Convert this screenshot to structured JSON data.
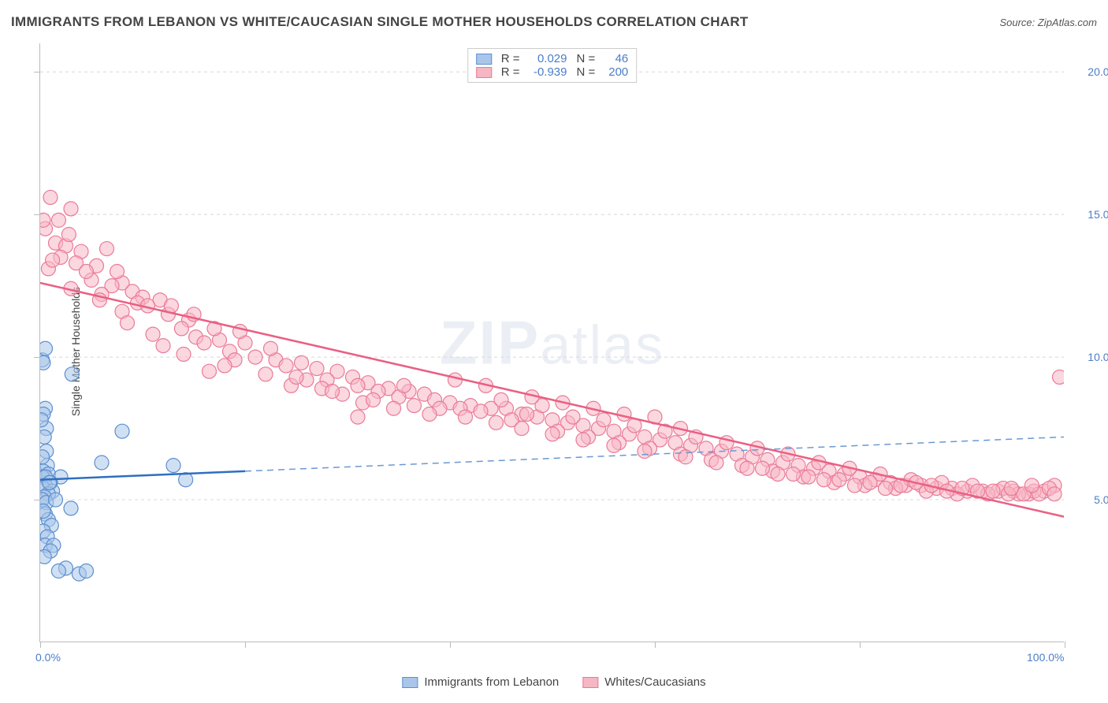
{
  "header": {
    "title": "IMMIGRANTS FROM LEBANON VS WHITE/CAUCASIAN SINGLE MOTHER HOUSEHOLDS CORRELATION CHART",
    "source_prefix": "Source: ",
    "source_name": "ZipAtlas.com"
  },
  "watermark": {
    "zip": "ZIP",
    "atlas": "atlas"
  },
  "chart": {
    "type": "scatter",
    "y_axis_label": "Single Mother Households",
    "xlim": [
      0,
      100
    ],
    "ylim": [
      0,
      21
    ],
    "x_ticks": [
      0,
      20,
      40,
      60,
      80,
      100
    ],
    "x_tick_labels": {
      "0": "0.0%",
      "100": "100.0%"
    },
    "y_ticks": [
      5,
      10,
      15,
      20
    ],
    "y_tick_labels": {
      "5": "5.0%",
      "10": "10.0%",
      "15": "15.0%",
      "20": "20.0%"
    },
    "grid_color": "#d8d8d8",
    "axis_color": "#bbbbbb",
    "background_color": "#ffffff",
    "tick_label_color": "#4a7ec9",
    "series": {
      "blue": {
        "label": "Immigrants from Lebanon",
        "fill": "#a9c6ea",
        "fill_opacity": 0.55,
        "stroke": "#5b8fd0",
        "line_color": "#2e6fc0",
        "dash_color": "#6a99d2",
        "R": "0.029",
        "N": "46",
        "marker_r": 9,
        "trend": {
          "x1": 0,
          "y1": 5.7,
          "x2": 100,
          "y2": 7.2,
          "solid_until_x": 20
        },
        "points": [
          {
            "x": 0.2,
            "y": 9.9
          },
          {
            "x": 0.3,
            "y": 9.8
          },
          {
            "x": 3.1,
            "y": 9.4
          },
          {
            "x": 0.5,
            "y": 8.2
          },
          {
            "x": 0.3,
            "y": 8.0
          },
          {
            "x": 0.6,
            "y": 7.5
          },
          {
            "x": 8.0,
            "y": 7.4
          },
          {
            "x": 0.4,
            "y": 7.2
          },
          {
            "x": 0.6,
            "y": 6.7
          },
          {
            "x": 6.0,
            "y": 6.3
          },
          {
            "x": 13.0,
            "y": 6.2
          },
          {
            "x": 0.7,
            "y": 6.2
          },
          {
            "x": 0.3,
            "y": 6.0
          },
          {
            "x": 0.8,
            "y": 5.9
          },
          {
            "x": 0.2,
            "y": 5.8
          },
          {
            "x": 0.5,
            "y": 5.8
          },
          {
            "x": 2.0,
            "y": 5.8
          },
          {
            "x": 14.2,
            "y": 5.7
          },
          {
            "x": 1.0,
            "y": 5.6
          },
          {
            "x": 0.5,
            "y": 5.5
          },
          {
            "x": 0.3,
            "y": 5.4
          },
          {
            "x": 1.2,
            "y": 5.3
          },
          {
            "x": 0.8,
            "y": 5.2
          },
          {
            "x": 0.4,
            "y": 5.1
          },
          {
            "x": 0.2,
            "y": 5.0
          },
          {
            "x": 0.6,
            "y": 4.9
          },
          {
            "x": 3.0,
            "y": 4.7
          },
          {
            "x": 0.5,
            "y": 4.5
          },
          {
            "x": 0.8,
            "y": 4.3
          },
          {
            "x": 1.1,
            "y": 4.1
          },
          {
            "x": 0.3,
            "y": 3.9
          },
          {
            "x": 0.7,
            "y": 3.7
          },
          {
            "x": 0.5,
            "y": 3.4
          },
          {
            "x": 1.3,
            "y": 3.4
          },
          {
            "x": 1.0,
            "y": 3.2
          },
          {
            "x": 0.4,
            "y": 3.0
          },
          {
            "x": 2.5,
            "y": 2.6
          },
          {
            "x": 1.8,
            "y": 2.5
          },
          {
            "x": 3.8,
            "y": 2.4
          },
          {
            "x": 4.5,
            "y": 2.5
          },
          {
            "x": 0.5,
            "y": 10.3
          },
          {
            "x": 0.1,
            "y": 7.8
          },
          {
            "x": 0.2,
            "y": 6.5
          },
          {
            "x": 1.5,
            "y": 5.0
          },
          {
            "x": 0.3,
            "y": 4.6
          },
          {
            "x": 0.9,
            "y": 5.6
          }
        ]
      },
      "pink": {
        "label": "Whites/Caucasians",
        "fill": "#f7b6c4",
        "fill_opacity": 0.55,
        "stroke": "#ea7a97",
        "line_color": "#e96083",
        "R": "-0.939",
        "N": "200",
        "marker_r": 9,
        "trend": {
          "x1": 0,
          "y1": 12.6,
          "x2": 100,
          "y2": 4.4,
          "solid_until_x": 100
        },
        "points": [
          {
            "x": 1.0,
            "y": 15.6
          },
          {
            "x": 3.0,
            "y": 15.2
          },
          {
            "x": 0.5,
            "y": 14.5
          },
          {
            "x": 1.5,
            "y": 14.0
          },
          {
            "x": 2.5,
            "y": 13.9
          },
          {
            "x": 4.0,
            "y": 13.7
          },
          {
            "x": 2.0,
            "y": 13.5
          },
          {
            "x": 3.5,
            "y": 13.3
          },
          {
            "x": 5.5,
            "y": 13.2
          },
          {
            "x": 0.8,
            "y": 13.1
          },
          {
            "x": 5.0,
            "y": 12.7
          },
          {
            "x": 8.0,
            "y": 12.6
          },
          {
            "x": 7.0,
            "y": 12.5
          },
          {
            "x": 3.0,
            "y": 12.4
          },
          {
            "x": 9.0,
            "y": 12.3
          },
          {
            "x": 6.0,
            "y": 12.2
          },
          {
            "x": 10.0,
            "y": 12.1
          },
          {
            "x": 11.7,
            "y": 12.0
          },
          {
            "x": 9.5,
            "y": 11.9
          },
          {
            "x": 8.0,
            "y": 11.6
          },
          {
            "x": 12.5,
            "y": 11.5
          },
          {
            "x": 14.5,
            "y": 11.3
          },
          {
            "x": 13.8,
            "y": 11.0
          },
          {
            "x": 11.0,
            "y": 10.8
          },
          {
            "x": 15.2,
            "y": 10.7
          },
          {
            "x": 17.5,
            "y": 10.6
          },
          {
            "x": 20.0,
            "y": 10.5
          },
          {
            "x": 16.0,
            "y": 10.5
          },
          {
            "x": 12.0,
            "y": 10.4
          },
          {
            "x": 18.5,
            "y": 10.2
          },
          {
            "x": 14.0,
            "y": 10.1
          },
          {
            "x": 21.0,
            "y": 10.0
          },
          {
            "x": 23.0,
            "y": 9.9
          },
          {
            "x": 19.0,
            "y": 9.9
          },
          {
            "x": 25.5,
            "y": 9.8
          },
          {
            "x": 24.0,
            "y": 9.7
          },
          {
            "x": 18.0,
            "y": 9.7
          },
          {
            "x": 27.0,
            "y": 9.6
          },
          {
            "x": 16.5,
            "y": 9.5
          },
          {
            "x": 29.0,
            "y": 9.5
          },
          {
            "x": 22.0,
            "y": 9.4
          },
          {
            "x": 30.5,
            "y": 9.3
          },
          {
            "x": 26.0,
            "y": 9.2
          },
          {
            "x": 28.0,
            "y": 9.2
          },
          {
            "x": 32.0,
            "y": 9.1
          },
          {
            "x": 31.0,
            "y": 9.0
          },
          {
            "x": 24.5,
            "y": 9.0
          },
          {
            "x": 34.0,
            "y": 8.9
          },
          {
            "x": 33.0,
            "y": 8.8
          },
          {
            "x": 36.0,
            "y": 8.8
          },
          {
            "x": 29.5,
            "y": 8.7
          },
          {
            "x": 37.5,
            "y": 8.7
          },
          {
            "x": 35.0,
            "y": 8.6
          },
          {
            "x": 38.5,
            "y": 8.5
          },
          {
            "x": 31.5,
            "y": 8.4
          },
          {
            "x": 40.0,
            "y": 8.4
          },
          {
            "x": 42.0,
            "y": 8.3
          },
          {
            "x": 36.5,
            "y": 8.3
          },
          {
            "x": 39.0,
            "y": 8.2
          },
          {
            "x": 44.0,
            "y": 8.2
          },
          {
            "x": 41.0,
            "y": 8.2
          },
          {
            "x": 45.5,
            "y": 8.2
          },
          {
            "x": 43.0,
            "y": 8.1
          },
          {
            "x": 47.0,
            "y": 8.0
          },
          {
            "x": 45.0,
            "y": 8.5
          },
          {
            "x": 48.5,
            "y": 7.9
          },
          {
            "x": 46.0,
            "y": 7.8
          },
          {
            "x": 50.0,
            "y": 7.8
          },
          {
            "x": 49.0,
            "y": 8.3
          },
          {
            "x": 51.5,
            "y": 7.7
          },
          {
            "x": 47.5,
            "y": 8.0
          },
          {
            "x": 53.0,
            "y": 7.6
          },
          {
            "x": 52.0,
            "y": 7.9
          },
          {
            "x": 54.5,
            "y": 7.5
          },
          {
            "x": 50.5,
            "y": 7.4
          },
          {
            "x": 56.0,
            "y": 7.4
          },
          {
            "x": 55.0,
            "y": 7.8
          },
          {
            "x": 57.5,
            "y": 7.3
          },
          {
            "x": 53.5,
            "y": 7.2
          },
          {
            "x": 59.0,
            "y": 7.2
          },
          {
            "x": 58.0,
            "y": 7.6
          },
          {
            "x": 60.5,
            "y": 7.1
          },
          {
            "x": 56.5,
            "y": 7.0
          },
          {
            "x": 62.0,
            "y": 7.0
          },
          {
            "x": 61.0,
            "y": 7.4
          },
          {
            "x": 63.5,
            "y": 6.9
          },
          {
            "x": 59.5,
            "y": 6.8
          },
          {
            "x": 65.0,
            "y": 6.8
          },
          {
            "x": 64.0,
            "y": 7.2
          },
          {
            "x": 66.5,
            "y": 6.7
          },
          {
            "x": 62.5,
            "y": 6.6
          },
          {
            "x": 68.0,
            "y": 6.6
          },
          {
            "x": 67.0,
            "y": 7.0
          },
          {
            "x": 69.5,
            "y": 6.5
          },
          {
            "x": 65.5,
            "y": 6.4
          },
          {
            "x": 71.0,
            "y": 6.4
          },
          {
            "x": 70.0,
            "y": 6.8
          },
          {
            "x": 72.5,
            "y": 6.3
          },
          {
            "x": 68.5,
            "y": 6.2
          },
          {
            "x": 74.0,
            "y": 6.2
          },
          {
            "x": 73.0,
            "y": 6.6
          },
          {
            "x": 75.5,
            "y": 6.1
          },
          {
            "x": 71.5,
            "y": 6.0
          },
          {
            "x": 77.0,
            "y": 6.0
          },
          {
            "x": 76.0,
            "y": 6.3
          },
          {
            "x": 78.5,
            "y": 5.9
          },
          {
            "x": 74.5,
            "y": 5.8
          },
          {
            "x": 80.0,
            "y": 5.8
          },
          {
            "x": 79.0,
            "y": 6.1
          },
          {
            "x": 81.5,
            "y": 5.7
          },
          {
            "x": 77.5,
            "y": 5.6
          },
          {
            "x": 83.0,
            "y": 5.6
          },
          {
            "x": 82.0,
            "y": 5.9
          },
          {
            "x": 84.5,
            "y": 5.5
          },
          {
            "x": 80.5,
            "y": 5.5
          },
          {
            "x": 86.0,
            "y": 5.5
          },
          {
            "x": 85.0,
            "y": 5.7
          },
          {
            "x": 87.5,
            "y": 5.4
          },
          {
            "x": 83.5,
            "y": 5.4
          },
          {
            "x": 89.0,
            "y": 5.4
          },
          {
            "x": 88.0,
            "y": 5.6
          },
          {
            "x": 90.5,
            "y": 5.3
          },
          {
            "x": 86.5,
            "y": 5.3
          },
          {
            "x": 92.0,
            "y": 5.3
          },
          {
            "x": 91.0,
            "y": 5.5
          },
          {
            "x": 93.5,
            "y": 5.3
          },
          {
            "x": 89.5,
            "y": 5.2
          },
          {
            "x": 95.0,
            "y": 5.3
          },
          {
            "x": 94.0,
            "y": 5.4
          },
          {
            "x": 96.5,
            "y": 5.2
          },
          {
            "x": 92.5,
            "y": 5.2
          },
          {
            "x": 98.0,
            "y": 5.3
          },
          {
            "x": 97.0,
            "y": 5.3
          },
          {
            "x": 99.0,
            "y": 5.5
          },
          {
            "x": 95.5,
            "y": 5.2
          },
          {
            "x": 99.5,
            "y": 9.3
          },
          {
            "x": 31.0,
            "y": 7.9
          },
          {
            "x": 40.5,
            "y": 9.2
          },
          {
            "x": 43.5,
            "y": 9.0
          },
          {
            "x": 27.5,
            "y": 8.9
          },
          {
            "x": 34.5,
            "y": 8.2
          },
          {
            "x": 6.5,
            "y": 13.8
          },
          {
            "x": 4.5,
            "y": 13.0
          },
          {
            "x": 1.8,
            "y": 14.8
          },
          {
            "x": 8.5,
            "y": 11.2
          },
          {
            "x": 10.5,
            "y": 11.8
          },
          {
            "x": 60.0,
            "y": 7.9
          },
          {
            "x": 62.5,
            "y": 7.5
          },
          {
            "x": 19.5,
            "y": 10.9
          },
          {
            "x": 22.5,
            "y": 10.3
          },
          {
            "x": 70.5,
            "y": 6.1
          },
          {
            "x": 73.5,
            "y": 5.9
          },
          {
            "x": 76.5,
            "y": 5.7
          },
          {
            "x": 79.5,
            "y": 5.5
          },
          {
            "x": 82.5,
            "y": 5.4
          },
          {
            "x": 85.5,
            "y": 5.6
          },
          {
            "x": 88.5,
            "y": 5.3
          },
          {
            "x": 91.5,
            "y": 5.3
          },
          {
            "x": 94.5,
            "y": 5.2
          },
          {
            "x": 97.5,
            "y": 5.2
          },
          {
            "x": 63.0,
            "y": 6.5
          },
          {
            "x": 66.0,
            "y": 6.3
          },
          {
            "x": 69.0,
            "y": 6.1
          },
          {
            "x": 72.0,
            "y": 5.9
          },
          {
            "x": 75.0,
            "y": 5.8
          },
          {
            "x": 78.0,
            "y": 5.7
          },
          {
            "x": 81.0,
            "y": 5.6
          },
          {
            "x": 84.0,
            "y": 5.5
          },
          {
            "x": 87.0,
            "y": 5.5
          },
          {
            "x": 90.0,
            "y": 5.4
          },
          {
            "x": 93.0,
            "y": 5.3
          },
          {
            "x": 96.0,
            "y": 5.2
          },
          {
            "x": 48.0,
            "y": 8.6
          },
          {
            "x": 51.0,
            "y": 8.4
          },
          {
            "x": 54.0,
            "y": 8.2
          },
          {
            "x": 57.0,
            "y": 8.0
          },
          {
            "x": 15.0,
            "y": 11.5
          },
          {
            "x": 17.0,
            "y": 11.0
          },
          {
            "x": 5.8,
            "y": 12.0
          },
          {
            "x": 7.5,
            "y": 13.0
          },
          {
            "x": 12.8,
            "y": 11.8
          },
          {
            "x": 2.8,
            "y": 14.3
          },
          {
            "x": 1.2,
            "y": 13.4
          },
          {
            "x": 0.3,
            "y": 14.8
          },
          {
            "x": 25.0,
            "y": 9.3
          },
          {
            "x": 28.5,
            "y": 8.8
          },
          {
            "x": 32.5,
            "y": 8.5
          },
          {
            "x": 35.5,
            "y": 9.0
          },
          {
            "x": 38.0,
            "y": 8.0
          },
          {
            "x": 41.5,
            "y": 7.9
          },
          {
            "x": 44.5,
            "y": 7.7
          },
          {
            "x": 47.0,
            "y": 7.5
          },
          {
            "x": 50.0,
            "y": 7.3
          },
          {
            "x": 53.0,
            "y": 7.1
          },
          {
            "x": 56.0,
            "y": 6.9
          },
          {
            "x": 59.0,
            "y": 6.7
          },
          {
            "x": 98.5,
            "y": 5.4
          },
          {
            "x": 99.0,
            "y": 5.2
          },
          {
            "x": 96.8,
            "y": 5.5
          },
          {
            "x": 94.8,
            "y": 5.4
          }
        ]
      }
    },
    "stats_legend_labels": {
      "R": "R =",
      "N": "N ="
    }
  }
}
